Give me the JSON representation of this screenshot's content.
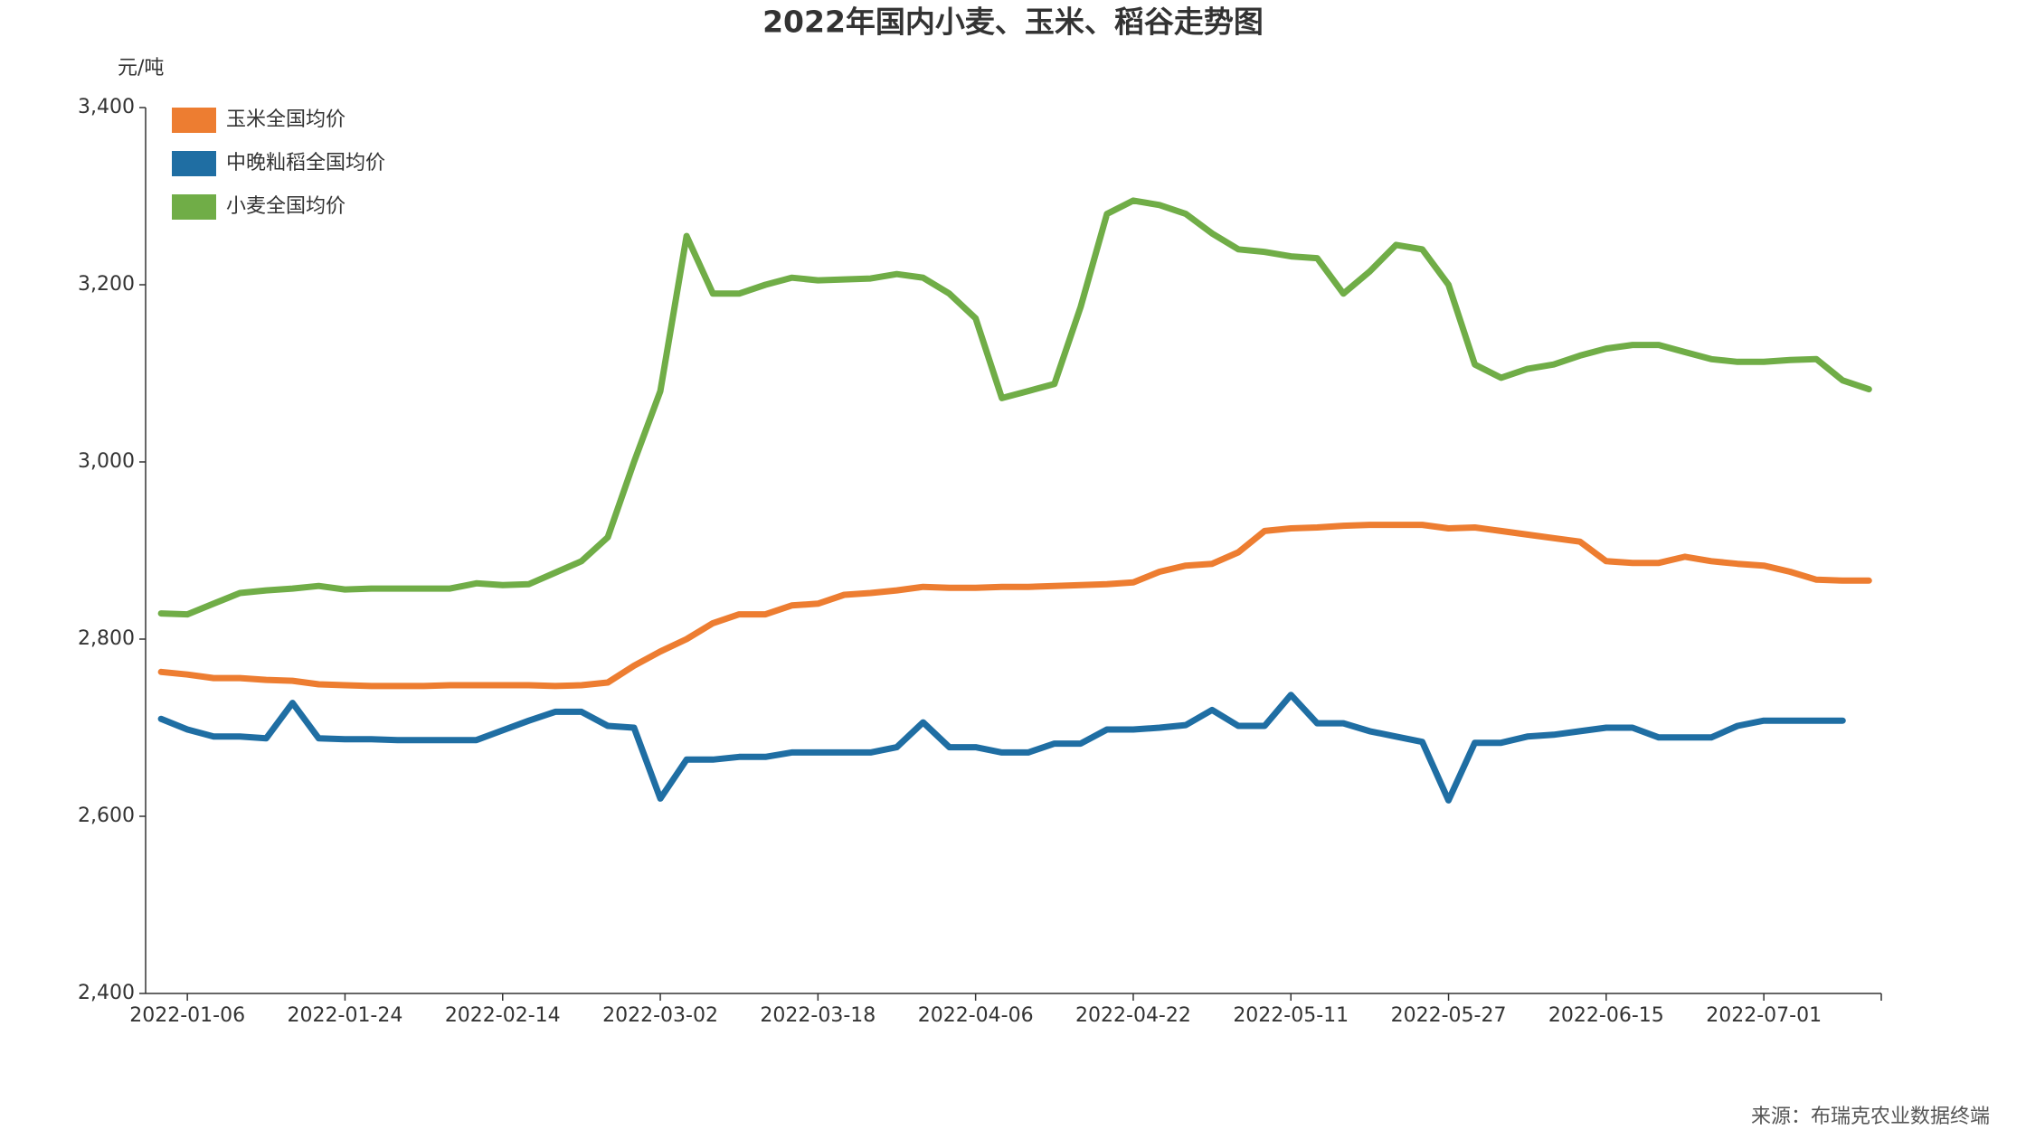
{
  "chart_data": {
    "type": "line",
    "title": "2022年国内小麦、玉米、稻谷走势图",
    "y_label": "元/吨",
    "source": "来源：布瑞克农业数据终端",
    "categories": [
      null,
      "2022-01-06",
      null,
      null,
      null,
      null,
      null,
      "2022-01-24",
      null,
      null,
      null,
      null,
      null,
      "2022-02-14",
      null,
      null,
      null,
      null,
      null,
      "2022-03-02",
      null,
      null,
      null,
      null,
      null,
      "2022-03-18",
      null,
      null,
      null,
      null,
      null,
      "2022-04-06",
      null,
      null,
      null,
      null,
      null,
      "2022-04-22",
      null,
      null,
      null,
      null,
      null,
      "2022-05-11",
      null,
      null,
      null,
      null,
      null,
      "2022-05-27",
      null,
      null,
      null,
      null,
      null,
      "2022-06-15",
      null,
      null,
      null,
      null,
      null,
      "2022-07-01",
      null,
      null,
      null,
      null
    ],
    "series": [
      {
        "name": "玉米全国均价",
        "color": "#ed7d31",
        "values": [
          2763,
          2760,
          2756,
          2756,
          2754,
          2753,
          2749,
          2748,
          2747,
          2747,
          2747,
          2748,
          2748,
          2748,
          2748,
          2747,
          2748,
          2751,
          2770,
          2786,
          2800,
          2818,
          2828,
          2828,
          2838,
          2840,
          2850,
          2852,
          2855,
          2859,
          2858,
          2858,
          2859,
          2859,
          2860,
          2861,
          2862,
          2864,
          2876,
          2883,
          2885,
          2898,
          2922,
          2925,
          2926,
          2928,
          2929,
          2929,
          2929,
          2925,
          2926,
          2922,
          2918,
          2914,
          2910,
          2888,
          2886,
          2886,
          2893,
          2888,
          2885,
          2883,
          2876,
          2867,
          2866,
          2866
        ]
      },
      {
        "name": "中晚籼稻全国均价",
        "color": "#1f6ea3",
        "values": [
          2710,
          2698,
          2690,
          2690,
          2688,
          2728,
          2688,
          2687,
          2687,
          2686,
          2686,
          2686,
          2686,
          2697,
          2708,
          2718,
          2718,
          2702,
          2700,
          2620,
          2664,
          2664,
          2667,
          2667,
          2672,
          2672,
          2672,
          2672,
          2678,
          2706,
          2678,
          2678,
          2672,
          2672,
          2682,
          2682,
          2698,
          2698,
          2700,
          2703,
          2720,
          2702,
          2702,
          2737,
          2705,
          2705,
          2696,
          2690,
          2684,
          2618,
          2683,
          2683,
          2690,
          2692,
          2696,
          2700,
          2700,
          2689,
          2689,
          2689,
          2702,
          2708,
          2708,
          2708,
          2708,
          null
        ]
      },
      {
        "name": "小麦全国均价",
        "color": "#70ad47",
        "values": [
          2829,
          2828,
          2840,
          2852,
          2855,
          2857,
          2860,
          2856,
          2857,
          2857,
          2857,
          2857,
          2863,
          2861,
          2862,
          2875,
          2888,
          2915,
          3000,
          3080,
          3255,
          3190,
          3190,
          3200,
          3208,
          3205,
          3206,
          3207,
          3212,
          3208,
          3190,
          3162,
          3072,
          3080,
          3088,
          3175,
          3280,
          3295,
          3290,
          3280,
          3258,
          3240,
          3237,
          3232,
          3230,
          3190,
          3215,
          3245,
          3240,
          3200,
          3110,
          3095,
          3105,
          3110,
          3120,
          3128,
          3132,
          3132,
          3124,
          3116,
          3113,
          3113,
          3115,
          3116,
          3092,
          3082
        ]
      }
    ],
    "ylim": [
      2400,
      3400
    ],
    "yticks": [
      {
        "value": 2400,
        "label": "2,400"
      },
      {
        "value": 2600,
        "label": "2,600"
      },
      {
        "value": 2800,
        "label": "2,800"
      },
      {
        "value": 3000,
        "label": "3,000"
      },
      {
        "value": 3200,
        "label": "3,200"
      },
      {
        "value": 3400,
        "label": "3,400"
      }
    ],
    "legend": "top-left",
    "grid": false
  }
}
